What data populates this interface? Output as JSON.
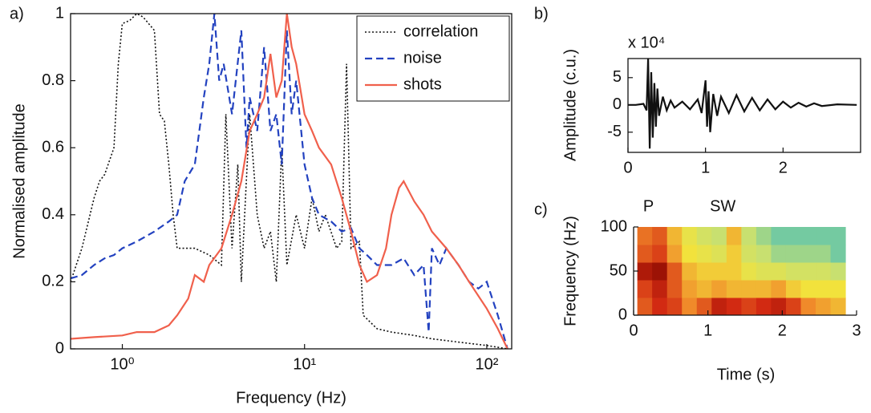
{
  "chart_data": [
    {
      "type": "line",
      "panel_label": "a)",
      "xlabel": "Frequency (Hz)",
      "ylabel": "Normalised amplitude",
      "log_x": true,
      "legend": "upper right",
      "frame": true,
      "xlim": [
        0.52,
        137
      ],
      "ylim": [
        0,
        1
      ],
      "xticks": [
        {
          "value": 1,
          "label": "10⁰"
        },
        {
          "value": 10,
          "label": "10¹"
        },
        {
          "value": 100,
          "label": "10²"
        }
      ],
      "yticks": [
        0,
        0.2,
        0.4,
        0.6,
        0.8,
        1
      ],
      "series": [
        {
          "name": "correlation",
          "color": "#111111",
          "style": "dotted",
          "x": [
            0.52,
            0.6,
            0.7,
            0.75,
            0.8,
            0.9,
            0.95,
            1.0,
            1.1,
            1.2,
            1.3,
            1.5,
            1.6,
            1.7,
            1.8,
            1.9,
            2.0,
            2.2,
            2.5,
            3.0,
            3.5,
            3.7,
            4.0,
            4.3,
            4.5,
            5,
            5.5,
            6,
            6.5,
            7,
            7.5,
            8,
            9,
            10,
            11,
            12,
            13,
            15,
            16,
            17,
            18,
            20,
            21,
            25,
            30,
            40,
            50,
            70,
            100,
            130
          ],
          "values": [
            0.2,
            0.3,
            0.45,
            0.5,
            0.52,
            0.6,
            0.85,
            0.97,
            0.98,
            1.0,
            0.99,
            0.95,
            0.7,
            0.68,
            0.55,
            0.4,
            0.3,
            0.3,
            0.3,
            0.28,
            0.25,
            0.7,
            0.3,
            0.55,
            0.2,
            0.7,
            0.4,
            0.3,
            0.35,
            0.2,
            0.6,
            0.25,
            0.4,
            0.3,
            0.45,
            0.35,
            0.4,
            0.3,
            0.32,
            0.85,
            0.3,
            0.32,
            0.1,
            0.06,
            0.05,
            0.04,
            0.03,
            0.02,
            0.01,
            0.0
          ]
        },
        {
          "name": "noise",
          "color": "#2342c0",
          "style": "dashed",
          "x": [
            0.52,
            0.6,
            0.7,
            0.8,
            0.9,
            1.0,
            1.2,
            1.5,
            1.8,
            2.0,
            2.2,
            2.5,
            2.8,
            3.0,
            3.2,
            3.4,
            3.6,
            4.0,
            4.5,
            4.8,
            5.0,
            5.5,
            6.0,
            6.5,
            7.0,
            7.5,
            8,
            8.5,
            9,
            10,
            11,
            12,
            14,
            16,
            18,
            20,
            22,
            25,
            30,
            35,
            40,
            45,
            48,
            50,
            55,
            60,
            70,
            80,
            90,
            100,
            115,
            130
          ],
          "values": [
            0.21,
            0.22,
            0.25,
            0.27,
            0.28,
            0.3,
            0.32,
            0.35,
            0.38,
            0.4,
            0.5,
            0.55,
            0.75,
            0.85,
            1.0,
            0.8,
            0.85,
            0.7,
            0.95,
            0.6,
            0.75,
            0.65,
            0.9,
            0.65,
            0.7,
            0.55,
            0.95,
            0.7,
            0.8,
            0.55,
            0.45,
            0.4,
            0.38,
            0.35,
            0.36,
            0.3,
            0.28,
            0.25,
            0.25,
            0.27,
            0.22,
            0.25,
            0.05,
            0.3,
            0.25,
            0.3,
            0.25,
            0.2,
            0.18,
            0.2,
            0.1,
            0.0
          ]
        },
        {
          "name": "shots",
          "color": "#f0604c",
          "style": "solid",
          "x": [
            0.52,
            0.7,
            1.0,
            1.2,
            1.5,
            1.8,
            2.0,
            2.3,
            2.5,
            2.8,
            3.0,
            3.5,
            4.0,
            4.5,
            5.0,
            5.5,
            6.0,
            6.5,
            7.0,
            7.5,
            8.0,
            8.5,
            9,
            10,
            11,
            12,
            14,
            16,
            18,
            20,
            22,
            25,
            28,
            30,
            33,
            35,
            40,
            45,
            50,
            60,
            70,
            80,
            100,
            115,
            130
          ],
          "values": [
            0.03,
            0.035,
            0.04,
            0.05,
            0.05,
            0.07,
            0.1,
            0.15,
            0.22,
            0.2,
            0.25,
            0.3,
            0.4,
            0.5,
            0.65,
            0.7,
            0.75,
            0.88,
            0.75,
            0.8,
            1.0,
            0.9,
            0.85,
            0.7,
            0.65,
            0.6,
            0.55,
            0.45,
            0.35,
            0.25,
            0.2,
            0.22,
            0.3,
            0.4,
            0.48,
            0.5,
            0.44,
            0.4,
            0.35,
            0.3,
            0.25,
            0.2,
            0.12,
            0.06,
            0.0
          ]
        }
      ]
    },
    {
      "type": "line",
      "panel_label": "b)",
      "ylabel": "Amplitude (c.u.)",
      "multiplier": "x 10⁴",
      "frame": true,
      "xlim": [
        0,
        3
      ],
      "ylim": [
        -8.7,
        8.5
      ],
      "xticks": [
        0,
        1,
        2
      ],
      "yticks": [
        -5,
        0,
        5
      ],
      "series": [
        {
          "color": "#111111",
          "style": "solid",
          "x": [
            0,
            0.1,
            0.2,
            0.24,
            0.26,
            0.28,
            0.3,
            0.32,
            0.34,
            0.36,
            0.38,
            0.4,
            0.45,
            0.5,
            0.55,
            0.6,
            0.7,
            0.8,
            0.9,
            0.95,
            1.0,
            1.02,
            1.04,
            1.06,
            1.1,
            1.15,
            1.2,
            1.3,
            1.4,
            1.5,
            1.6,
            1.7,
            1.8,
            1.9,
            2.0,
            2.1,
            2.2,
            2.3,
            2.4,
            2.5,
            2.7,
            2.95
          ],
          "values": [
            0,
            0,
            0.2,
            -1,
            8.5,
            -8,
            6,
            -6,
            4,
            -4,
            3,
            -2,
            1.5,
            -1,
            0.8,
            -0.5,
            0.6,
            -0.8,
            1,
            -1.5,
            4.5,
            -4,
            2.5,
            -5,
            2,
            -2,
            1.5,
            -1.5,
            1.8,
            -1.2,
            1.3,
            -1,
            1,
            -0.8,
            0.6,
            -0.5,
            0.4,
            -0.3,
            0.3,
            -0.2,
            0.1,
            0
          ]
        }
      ]
    },
    {
      "type": "heatmap",
      "panel_label": "c)",
      "xlabel": "Time (s)",
      "ylabel": "Frequency (Hz)",
      "frame": false,
      "xlim": [
        0,
        3
      ],
      "ylim": [
        0,
        100
      ],
      "xticks": [
        0,
        1,
        2,
        3
      ],
      "yticks": [
        0,
        50,
        100
      ],
      "annotations": [
        "P",
        "SW"
      ],
      "colormap": [
        "#1fb4d2",
        "#c8e070",
        "#f2e23c",
        "#f08a2a",
        "#d22a12",
        "#8a0a00"
      ],
      "x_edges": [
        0.05,
        0.25,
        0.45,
        0.65,
        0.85,
        1.05,
        1.25,
        1.45,
        1.65,
        1.85,
        2.05,
        2.25,
        2.45,
        2.65,
        2.85
      ],
      "y_edges": [
        0,
        20,
        40,
        60,
        80,
        100
      ],
      "z": [
        [
          0.7,
          0.8,
          0.75,
          0.6,
          0.7,
          0.85,
          0.8,
          0.75,
          0.8,
          0.85,
          0.75,
          0.6,
          0.55,
          0.5
        ],
        [
          0.75,
          0.85,
          0.7,
          0.55,
          0.5,
          0.55,
          0.5,
          0.5,
          0.5,
          0.55,
          0.45,
          0.4,
          0.4,
          0.4
        ],
        [
          0.9,
          0.95,
          0.7,
          0.5,
          0.45,
          0.45,
          0.45,
          0.35,
          0.3,
          0.3,
          0.25,
          0.25,
          0.25,
          0.2
        ],
        [
          0.7,
          0.75,
          0.55,
          0.4,
          0.35,
          0.3,
          0.45,
          0.25,
          0.2,
          0.15,
          0.15,
          0.15,
          0.15,
          0.1
        ],
        [
          0.65,
          0.7,
          0.5,
          0.35,
          0.25,
          0.2,
          0.5,
          0.2,
          0.15,
          0.1,
          0.1,
          0.1,
          0.1,
          0.1
        ]
      ]
    }
  ]
}
